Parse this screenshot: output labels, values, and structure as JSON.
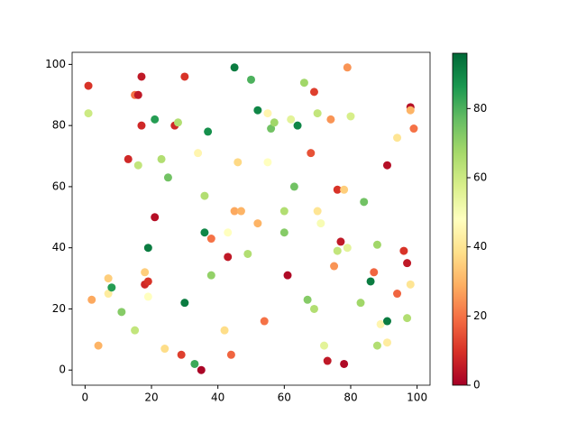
{
  "chart_data": {
    "type": "scatter",
    "x": [
      1,
      1,
      2,
      4,
      7,
      7,
      8,
      11,
      13,
      15,
      15,
      16,
      16,
      17,
      17,
      18,
      18,
      19,
      19,
      19,
      21,
      21,
      23,
      24,
      25,
      27,
      28,
      29,
      30,
      30,
      33,
      34,
      35,
      36,
      36,
      37,
      38,
      38,
      42,
      43,
      43,
      44,
      45,
      45,
      46,
      47,
      49,
      50,
      52,
      52,
      54,
      55,
      55,
      56,
      57,
      60,
      60,
      61,
      62,
      63,
      64,
      66,
      67,
      68,
      69,
      69,
      70,
      70,
      71,
      72,
      73,
      74,
      75,
      76,
      76,
      77,
      78,
      78,
      79,
      79,
      80,
      83,
      84,
      86,
      87,
      88,
      88,
      89,
      91,
      91,
      91,
      94,
      94,
      96,
      97,
      97,
      98,
      98,
      98,
      99
    ],
    "y": [
      93,
      84,
      23,
      8,
      30,
      25,
      27,
      19,
      69,
      13,
      90,
      90,
      67,
      96,
      80,
      32,
      28,
      29,
      24,
      40,
      82,
      50,
      69,
      7,
      63,
      80,
      81,
      5,
      96,
      22,
      2,
      71,
      0,
      57,
      45,
      78,
      43,
      31,
      13,
      37,
      45,
      5,
      99,
      52,
      68,
      52,
      38,
      95,
      48,
      85,
      16,
      84,
      68,
      79,
      81,
      52,
      45,
      31,
      82,
      60,
      80,
      94,
      23,
      71,
      91,
      20,
      84,
      52,
      48,
      8,
      3,
      82,
      34,
      59,
      39,
      42,
      2,
      59,
      99,
      40,
      83,
      22,
      55,
      29,
      32,
      41,
      8,
      15,
      16,
      67,
      9,
      25,
      76,
      39,
      35,
      17,
      86,
      85,
      28,
      79
    ],
    "color_values": [
      10,
      60,
      28,
      30,
      35,
      42,
      85,
      72,
      8,
      62,
      20,
      5,
      62,
      5,
      8,
      35,
      8,
      10,
      48,
      92,
      85,
      3,
      65,
      38,
      75,
      8,
      65,
      12,
      10,
      92,
      82,
      45,
      1,
      65,
      90,
      88,
      20,
      70,
      38,
      5,
      48,
      18,
      92,
      28,
      37,
      30,
      65,
      80,
      30,
      90,
      20,
      45,
      48,
      75,
      68,
      65,
      72,
      2,
      55,
      75,
      90,
      68,
      72,
      15,
      12,
      65,
      62,
      40,
      50,
      55,
      5,
      25,
      25,
      10,
      62,
      5,
      2,
      35,
      25,
      55,
      58,
      68,
      75,
      92,
      18,
      68,
      65,
      45,
      92,
      3,
      42,
      18,
      40,
      10,
      5,
      65,
      3,
      30,
      40,
      20
    ],
    "colormap": "RdYlGn",
    "clim": [
      0,
      96
    ],
    "cticks": [
      0,
      20,
      40,
      60,
      80
    ],
    "xlim": [
      -3.9,
      103.9
    ],
    "ylim": [
      -4.95,
      103.95
    ],
    "xticks": [
      0,
      20,
      40,
      60,
      80,
      100
    ],
    "yticks": [
      0,
      20,
      40,
      60,
      80,
      100
    ]
  }
}
